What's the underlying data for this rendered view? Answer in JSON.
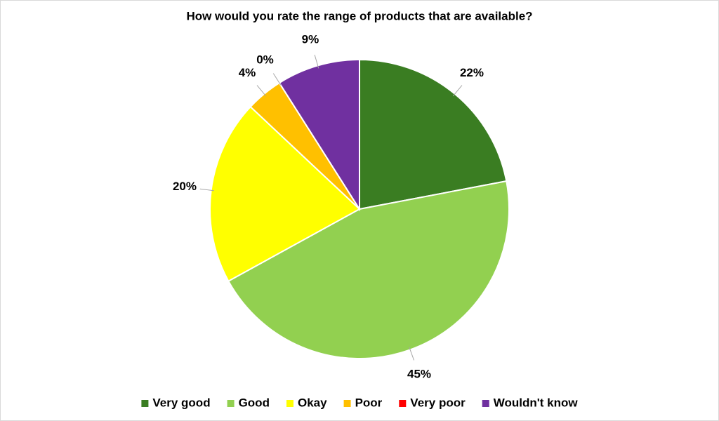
{
  "chart_data": {
    "type": "pie",
    "title": "How would you rate the range of products that are available?",
    "categories": [
      "Very good",
      "Good",
      "Okay",
      "Poor",
      "Very poor",
      "Wouldn't know"
    ],
    "values": [
      22,
      45,
      20,
      4,
      0,
      9
    ],
    "value_labels": [
      "22%",
      "45%",
      "20%",
      "4%",
      "0%",
      "9%"
    ],
    "colors": [
      "#3a7d22",
      "#92d050",
      "#ffff00",
      "#ffc000",
      "#ff0000",
      "#7030a0"
    ],
    "legend": "bottom"
  }
}
